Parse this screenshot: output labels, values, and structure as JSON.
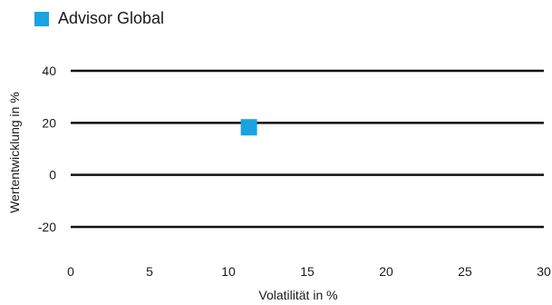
{
  "chart_data": {
    "type": "scatter",
    "title": "",
    "xlabel": "Volatilität in %",
    "ylabel": "Wertentwicklung in %",
    "xlim": [
      0,
      30
    ],
    "ylim": [
      -20,
      40
    ],
    "xticks": [
      0,
      5,
      10,
      15,
      20,
      25,
      30
    ],
    "yticks": [
      40,
      20,
      0,
      -20
    ],
    "grid": "horizontal",
    "legend": "top-left",
    "series": [
      {
        "name": "Advisor Global",
        "color": "#1aa3e0",
        "marker": "square",
        "points": [
          {
            "x": 11.3,
            "y": 18.3
          }
        ]
      }
    ]
  }
}
